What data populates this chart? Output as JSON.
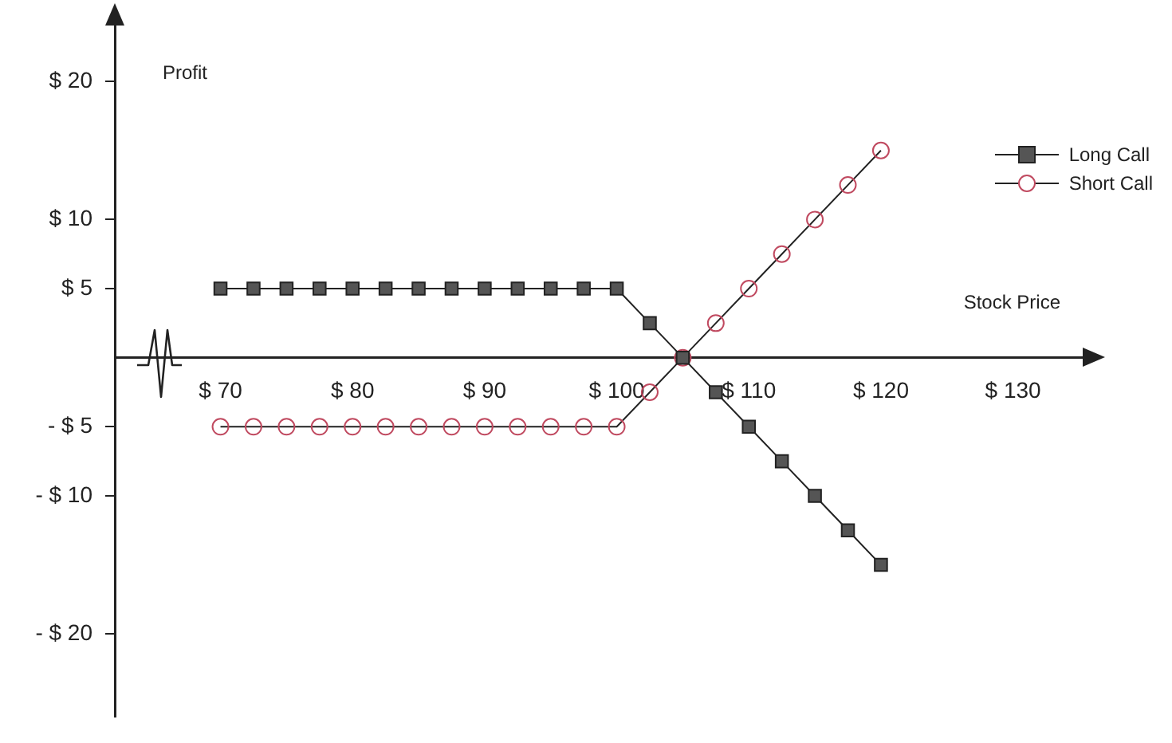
{
  "chart_data": {
    "type": "line",
    "xlabel": "Stock Price",
    "ylabel": "Profit",
    "x": [
      70,
      72.5,
      75,
      77.5,
      80,
      82.5,
      85,
      87.5,
      90,
      92.5,
      95,
      97.5,
      100,
      102.5,
      105,
      107.5,
      110,
      112.5,
      115,
      117.5,
      120
    ],
    "series": [
      {
        "name": "Long Call",
        "color": "#555555",
        "marker": "square",
        "values": [
          5,
          5,
          5,
          5,
          5,
          5,
          5,
          5,
          5,
          5,
          5,
          5,
          5,
          2.5,
          0,
          -2.5,
          -5,
          -7.5,
          -10,
          -12.5,
          -15
        ]
      },
      {
        "name": "Short Call",
        "color": "#c04a60",
        "marker": "circle",
        "values": [
          -5,
          -5,
          -5,
          -5,
          -5,
          -5,
          -5,
          -5,
          -5,
          -5,
          -5,
          -5,
          -5,
          -2.5,
          0,
          2.5,
          5,
          7.5,
          10,
          12.5,
          15
        ]
      }
    ],
    "xlim": [
      62,
      136
    ],
    "ylim": [
      -26,
      24
    ],
    "xticks": [
      {
        "value": 70,
        "label": "$ 70"
      },
      {
        "value": 80,
        "label": "$ 80"
      },
      {
        "value": 90,
        "label": "$ 90"
      },
      {
        "value": 100,
        "label": "$ 100"
      },
      {
        "value": 110,
        "label": "$ 110"
      },
      {
        "value": 120,
        "label": "$ 120"
      },
      {
        "value": 130,
        "label": "$ 130"
      }
    ],
    "yticks": [
      {
        "value": 20,
        "label": "$ 20"
      },
      {
        "value": 10,
        "label": "$ 10"
      },
      {
        "value": 5,
        "label": "$ 5"
      },
      {
        "value": -5,
        "label": "- $ 5"
      },
      {
        "value": -10,
        "label": "- $ 10"
      },
      {
        "value": -20,
        "label": "- $ 20"
      }
    ],
    "grid": false,
    "legend": "top right",
    "line_style": "solid"
  }
}
